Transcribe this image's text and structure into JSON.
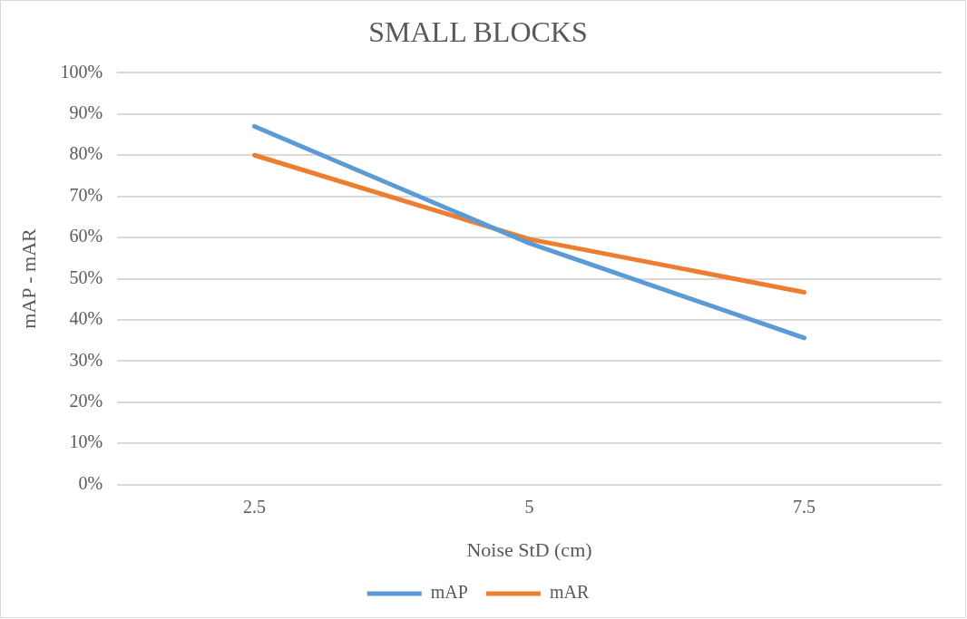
{
  "chart_data": {
    "type": "line",
    "title": "SMALL BLOCKS",
    "xlabel": "Noise StD (cm)",
    "ylabel": "mAP - mAR",
    "categories": [
      "2.5",
      "5",
      "7.5"
    ],
    "series": [
      {
        "name": "mAP",
        "color": "#5b9bd5",
        "values": [
          87,
          58.6,
          35.6
        ]
      },
      {
        "name": "mAR",
        "color": "#ed7d31",
        "values": [
          80,
          59.6,
          46.7
        ]
      }
    ],
    "ylim": [
      0,
      100
    ],
    "yticks": [
      {
        "value": 0,
        "label": "0%"
      },
      {
        "value": 10,
        "label": "10%"
      },
      {
        "value": 20,
        "label": "20%"
      },
      {
        "value": 30,
        "label": "30%"
      },
      {
        "value": 40,
        "label": "40%"
      },
      {
        "value": 50,
        "label": "50%"
      },
      {
        "value": 60,
        "label": "60%"
      },
      {
        "value": 70,
        "label": "70%"
      },
      {
        "value": 80,
        "label": "80%"
      },
      {
        "value": 90,
        "label": "90%"
      },
      {
        "value": 100,
        "label": "100%"
      }
    ],
    "grid": "y",
    "legend": "bottom",
    "marker": "none",
    "line_style": "solid"
  }
}
